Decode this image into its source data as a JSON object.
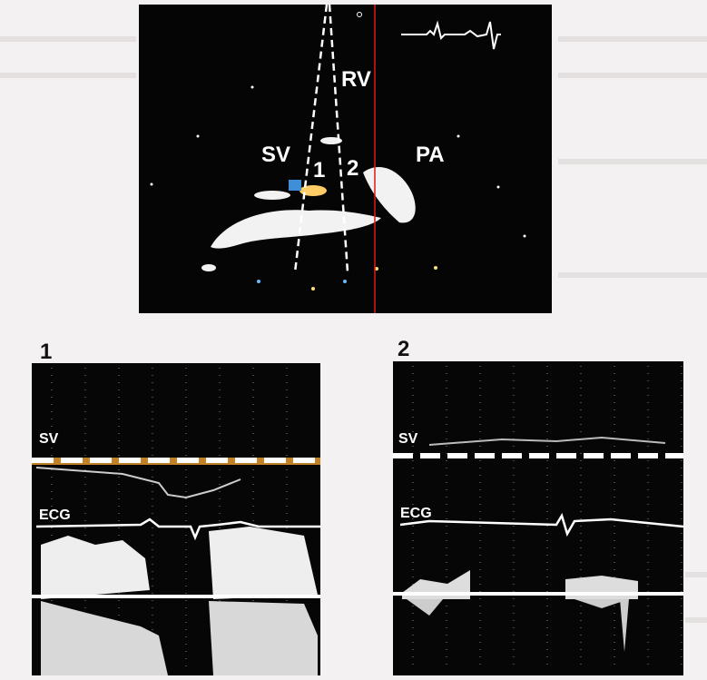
{
  "top_panel": {
    "labels": {
      "rv": "RV",
      "sv": "SV",
      "pa": "PA",
      "beam1": "1",
      "beam2": "2"
    }
  },
  "panels": [
    {
      "label": "1",
      "sv": "SV",
      "ecg": "ECG"
    },
    {
      "label": "2",
      "sv": "SV",
      "ecg": "ECG"
    }
  ]
}
